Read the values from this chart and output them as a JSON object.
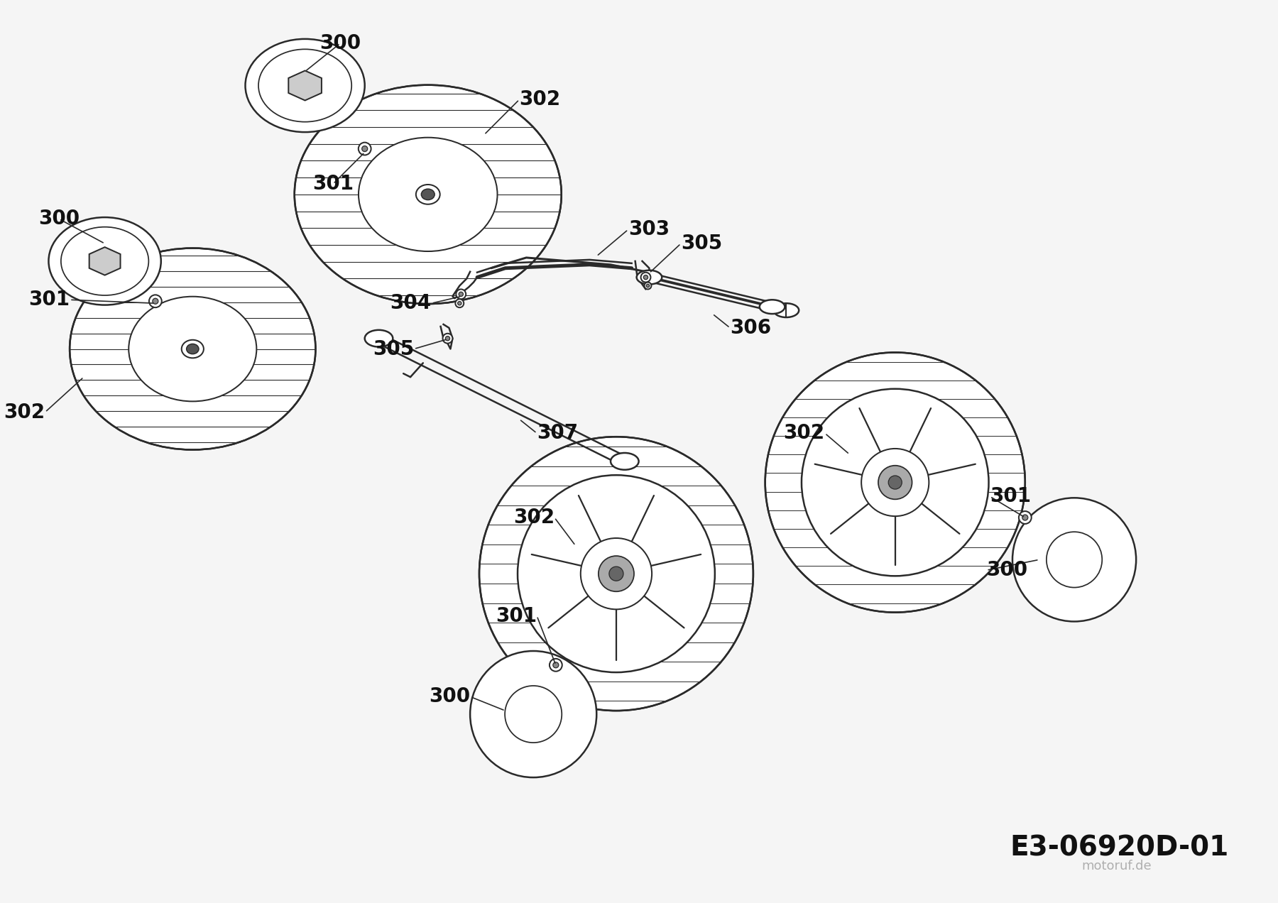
{
  "bg_color": "#f5f5f5",
  "line_color": "#2a2a2a",
  "lw_main": 1.8,
  "lw_thin": 1.0,
  "lw_thick": 2.5,
  "label_fontsize": 20,
  "code_fontsize": 28,
  "diagram_code": "E3-06920D-01"
}
